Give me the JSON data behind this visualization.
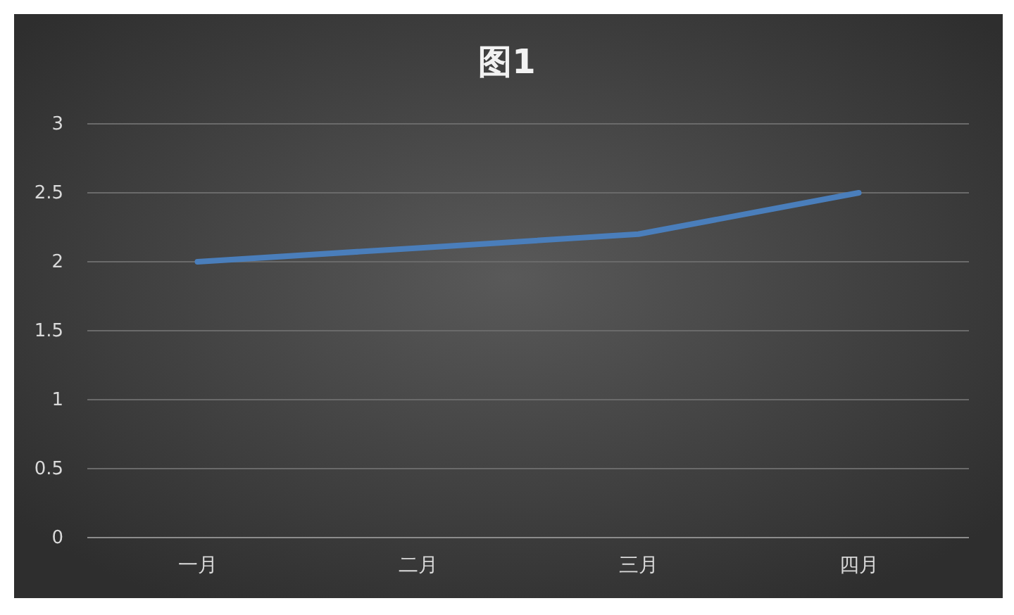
{
  "chart_data": {
    "type": "line",
    "title": "图1",
    "categories": [
      "一月",
      "二月",
      "三月",
      "四月"
    ],
    "series": [
      {
        "color": "#4a7ebb",
        "values": [
          2,
          2.1,
          2.2,
          2.5
        ]
      }
    ],
    "ylim": [
      0,
      3
    ],
    "yticks": [
      0,
      0.5,
      1,
      1.5,
      2,
      2.5,
      3
    ],
    "grid": "y",
    "line_style": "solid"
  }
}
